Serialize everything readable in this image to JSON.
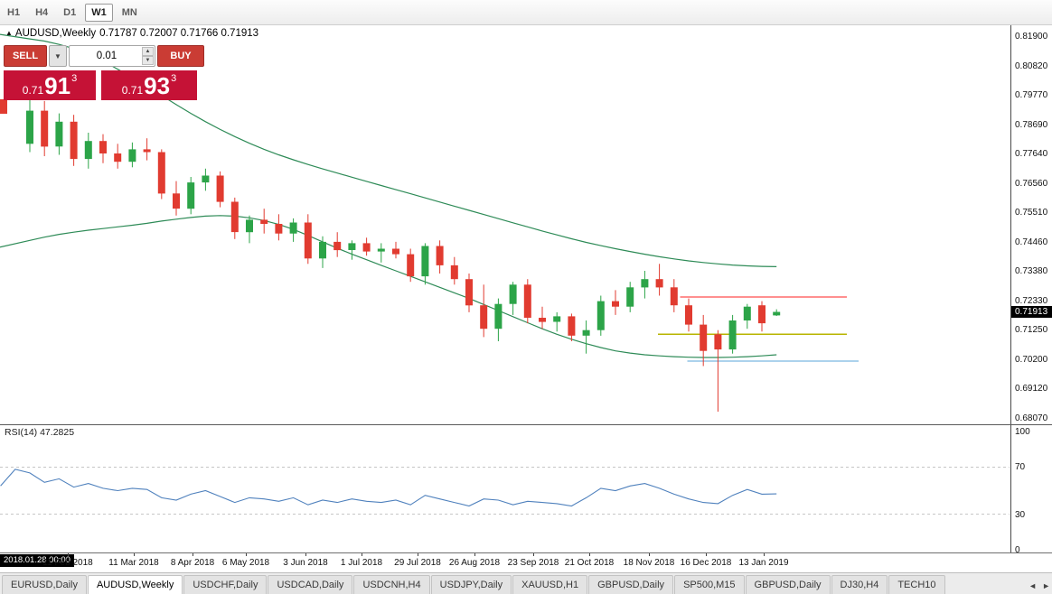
{
  "toolbar": {
    "timeframes": [
      "H1",
      "H4",
      "D1",
      "W1",
      "MN"
    ],
    "active": "W1"
  },
  "chart_header": {
    "icon": "chart-symbol-triangle",
    "symbol_label": "AUDUSD,Weekly",
    "ohlc": "0.71787 0.72007 0.71766 0.71913"
  },
  "trade_panel": {
    "sell_label": "SELL",
    "buy_label": "BUY",
    "lot_size": "0.01",
    "sell_price": {
      "prefix": "0.71",
      "main": "91",
      "pip": "3"
    },
    "buy_price": {
      "prefix": "0.71",
      "main": "93",
      "pip": "3"
    }
  },
  "price_axis_labels": [
    "0.81900",
    "0.80820",
    "0.79770",
    "0.78690",
    "0.77640",
    "0.76560",
    "0.75510",
    "0.74460",
    "0.73380",
    "0.72330",
    "0.71250",
    "0.70200",
    "0.69120",
    "0.68070"
  ],
  "current_price_tag": "0.71913",
  "rsi_panel": {
    "label": "RSI(14) 47.2825",
    "axis_labels": [
      "100",
      "70",
      "30",
      "0"
    ]
  },
  "time_axis": {
    "cursor_label": "2018.01.28 00:00",
    "date_labels": [
      "11 Feb 2018",
      "11 Mar 2018",
      "8 Apr 2018",
      "6 May 2018",
      "3 Jun 2018",
      "1 Jul 2018",
      "29 Jul 2018",
      "26 Aug 2018",
      "23 Sep 2018",
      "21 Oct 2018",
      "18 Nov 2018",
      "16 Dec 2018",
      "13 Jan 2019"
    ]
  },
  "tabbar": {
    "tabs": [
      "EURUSD,Daily",
      "AUDUSD,Weekly",
      "USDCHF,Daily",
      "USDCAD,Daily",
      "USDCNH,H4",
      "USDJPY,Daily",
      "XAUUSD,H1",
      "GBPUSD,Daily",
      "SP500,M15",
      "GBPUSD,Daily",
      "DJ30,H4",
      "TECH10"
    ],
    "active_index": 1,
    "scroll_left": "◄",
    "scroll_right": "►"
  },
  "colors": {
    "bull": "#2ca448",
    "bear": "#e13b30",
    "band": "#2e8b57",
    "rsi_line": "#4f81bd",
    "rsi_level": "#c6c6c6",
    "hline_red": "#ff2020",
    "hline_yellow": "#b8b400",
    "hline_blue": "#58a6d8",
    "trade_button": "#ca3c34",
    "trade_box": "#c51236",
    "price_tag_bg": "#000000"
  },
  "chart_data": {
    "type": "candlestick",
    "symbol": "AUDUSD",
    "timeframe": "Weekly",
    "title": "AUDUSD,Weekly",
    "ohlc_current": {
      "open": 0.71787,
      "high": 0.72007,
      "low": 0.71766,
      "close": 0.71913
    },
    "ylim": [
      0.6807,
      0.819
    ],
    "candles": [
      [
        0.78,
        0.796,
        0.777,
        0.792
      ],
      [
        0.792,
        0.7955,
        0.7755,
        0.779
      ],
      [
        0.779,
        0.791,
        0.776,
        0.788
      ],
      [
        0.788,
        0.7905,
        0.772,
        0.7745
      ],
      [
        0.7745,
        0.784,
        0.771,
        0.781
      ],
      [
        0.781,
        0.7835,
        0.773,
        0.7765
      ],
      [
        0.7765,
        0.78,
        0.771,
        0.7735
      ],
      [
        0.7735,
        0.7805,
        0.7715,
        0.778
      ],
      [
        0.778,
        0.782,
        0.774,
        0.777
      ],
      [
        0.777,
        0.778,
        0.76,
        0.762
      ],
      [
        0.762,
        0.7665,
        0.754,
        0.7565
      ],
      [
        0.7565,
        0.768,
        0.7545,
        0.766
      ],
      [
        0.766,
        0.771,
        0.763,
        0.7685
      ],
      [
        0.7685,
        0.77,
        0.757,
        0.759
      ],
      [
        0.759,
        0.7605,
        0.7455,
        0.748
      ],
      [
        0.748,
        0.754,
        0.744,
        0.7525
      ],
      [
        0.7525,
        0.7565,
        0.7475,
        0.751
      ],
      [
        0.751,
        0.7545,
        0.745,
        0.7475
      ],
      [
        0.7475,
        0.753,
        0.7445,
        0.7515
      ],
      [
        0.7515,
        0.7545,
        0.7365,
        0.7385
      ],
      [
        0.7385,
        0.7465,
        0.735,
        0.7445
      ],
      [
        0.7445,
        0.748,
        0.739,
        0.7415
      ],
      [
        0.7415,
        0.745,
        0.738,
        0.744
      ],
      [
        0.744,
        0.746,
        0.7395,
        0.741
      ],
      [
        0.741,
        0.744,
        0.737,
        0.742
      ],
      [
        0.742,
        0.7445,
        0.7385,
        0.74
      ],
      [
        0.74,
        0.742,
        0.73,
        0.732
      ],
      [
        0.732,
        0.744,
        0.729,
        0.743
      ],
      [
        0.743,
        0.745,
        0.733,
        0.736
      ],
      [
        0.736,
        0.739,
        0.729,
        0.731
      ],
      [
        0.731,
        0.733,
        0.719,
        0.7215
      ],
      [
        0.7215,
        0.729,
        0.71,
        0.713
      ],
      [
        0.713,
        0.724,
        0.7085,
        0.722
      ],
      [
        0.722,
        0.73,
        0.718,
        0.729
      ],
      [
        0.729,
        0.731,
        0.715,
        0.717
      ],
      [
        0.717,
        0.721,
        0.713,
        0.7155
      ],
      [
        0.7155,
        0.719,
        0.712,
        0.7175
      ],
      [
        0.7175,
        0.7185,
        0.7085,
        0.7105
      ],
      [
        0.7105,
        0.716,
        0.704,
        0.7125
      ],
      [
        0.7125,
        0.725,
        0.7105,
        0.723
      ],
      [
        0.723,
        0.727,
        0.718,
        0.721
      ],
      [
        0.721,
        0.73,
        0.719,
        0.728
      ],
      [
        0.728,
        0.734,
        0.724,
        0.731
      ],
      [
        0.731,
        0.7365,
        0.725,
        0.728
      ],
      [
        0.728,
        0.731,
        0.719,
        0.7215
      ],
      [
        0.7215,
        0.724,
        0.712,
        0.7145
      ],
      [
        0.7145,
        0.718,
        0.6995,
        0.705
      ],
      [
        0.711,
        0.7125,
        0.683,
        0.7055
      ],
      [
        0.7055,
        0.718,
        0.704,
        0.716
      ],
      [
        0.716,
        0.722,
        0.713,
        0.721
      ],
      [
        0.7215,
        0.723,
        0.712,
        0.715
      ],
      [
        0.71787,
        0.72007,
        0.71766,
        0.71913
      ]
    ],
    "bollinger": {
      "upper": [
        0.818,
        0.8172,
        0.816,
        0.8145,
        0.8125,
        0.81,
        0.807,
        0.804,
        0.8008,
        0.7975,
        0.7942,
        0.791,
        0.788,
        0.7852,
        0.7826,
        0.7802,
        0.778,
        0.776,
        0.7742,
        0.7725,
        0.7709,
        0.7694,
        0.7679,
        0.7664,
        0.7649,
        0.7634,
        0.7619,
        0.7604,
        0.7589,
        0.7574,
        0.7559,
        0.7544,
        0.7529,
        0.7514,
        0.7499,
        0.7484,
        0.747,
        0.7456,
        0.7443,
        0.7431,
        0.742,
        0.741,
        0.74,
        0.7391,
        0.7383,
        0.7376,
        0.737,
        0.7365,
        0.7361,
        0.7358,
        0.7356,
        0.7355
      ],
      "lower": [
        0.745,
        0.7462,
        0.7472,
        0.748,
        0.7487,
        0.7493,
        0.7499,
        0.7505,
        0.7512,
        0.752,
        0.7527,
        0.7533,
        0.7538,
        0.754,
        0.7538,
        0.7532,
        0.7522,
        0.7508,
        0.749,
        0.7468,
        0.7445,
        0.7422,
        0.74,
        0.738,
        0.736,
        0.734,
        0.732,
        0.73,
        0.728,
        0.726,
        0.724,
        0.7218,
        0.7196,
        0.7174,
        0.7152,
        0.713,
        0.711,
        0.7092,
        0.7076,
        0.7062,
        0.705,
        0.7042,
        0.7036,
        0.7032,
        0.7029,
        0.7027,
        0.7026,
        0.7026,
        0.7027,
        0.7029,
        0.7032,
        0.7036
      ]
    },
    "hlines": [
      {
        "price": 0.7245,
        "from_index": 44.4,
        "to_index": 55.8,
        "color_key": "hline_red"
      },
      {
        "price": 0.711,
        "from_index": 42.9,
        "to_index": 55.8,
        "color_key": "hline_yellow"
      },
      {
        "price": 0.7013,
        "from_index": 44.9,
        "to_index": 56.6,
        "color_key": "hline_blue"
      }
    ],
    "rsi": {
      "period": 14,
      "current": 47.2825,
      "range": [
        0,
        100
      ],
      "levels": [
        70,
        30
      ],
      "lead_in": [
        54,
        68
      ],
      "values": [
        65,
        57,
        60,
        53,
        56,
        52,
        50,
        52,
        51,
        44,
        42,
        47,
        50,
        45,
        40,
        44,
        43,
        41,
        44,
        38,
        42,
        40,
        43,
        41,
        40,
        42,
        38,
        46,
        43,
        40,
        37,
        43,
        42,
        38,
        41,
        40,
        39,
        37,
        44,
        52,
        50,
        54,
        56,
        52,
        47,
        43,
        40,
        39,
        46,
        51,
        47,
        47.28
      ]
    }
  }
}
